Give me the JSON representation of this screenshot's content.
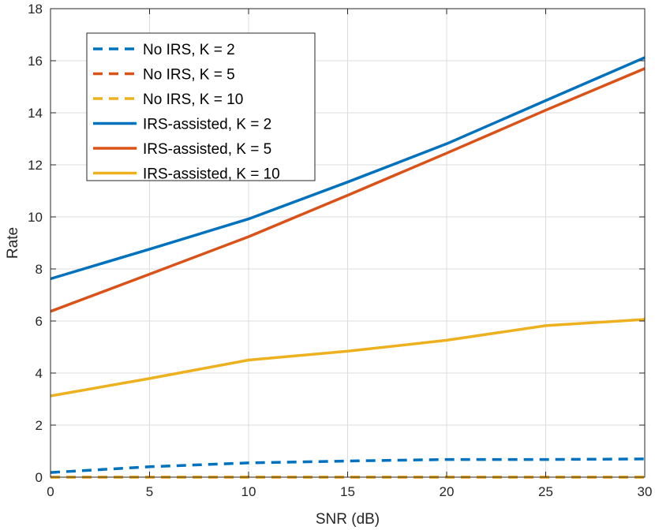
{
  "chart_data": {
    "type": "line",
    "title": "",
    "xlabel": "SNR (dB)",
    "ylabel": "Rate",
    "xlim": [
      0,
      30
    ],
    "ylim": [
      0,
      18
    ],
    "x_ticks": [
      0,
      5,
      10,
      15,
      20,
      25,
      30
    ],
    "y_ticks": [
      0,
      2,
      4,
      6,
      8,
      10,
      12,
      14,
      16,
      18
    ],
    "grid": true,
    "legend_position": "top-left",
    "x": [
      0,
      5,
      10,
      15,
      20,
      25,
      30
    ],
    "series": [
      {
        "name": "No IRS, K = 2",
        "style": "dashed",
        "color": "#0072BD",
        "values": [
          0.18,
          0.4,
          0.55,
          0.62,
          0.68,
          0.68,
          0.7
        ]
      },
      {
        "name": "No IRS, K = 5",
        "style": "dashed",
        "color": "#D95319",
        "values": [
          0.0,
          0.0,
          0.0,
          0.0,
          0.0,
          0.0,
          0.0
        ]
      },
      {
        "name": "No IRS, K = 10",
        "style": "dashed",
        "color": "#EDB120",
        "values": [
          0.0,
          0.0,
          0.0,
          0.0,
          0.0,
          0.0,
          0.0
        ]
      },
      {
        "name": "IRS-assisted, K = 2",
        "style": "solid",
        "color": "#0072BD",
        "values": [
          7.62,
          8.76,
          9.92,
          11.34,
          12.81,
          14.47,
          16.12
        ]
      },
      {
        "name": "IRS-assisted, K = 5",
        "style": "solid",
        "color": "#D95319",
        "values": [
          6.37,
          7.8,
          9.24,
          10.83,
          12.45,
          14.1,
          15.7
        ]
      },
      {
        "name": "IRS-assisted, K = 10",
        "style": "solid",
        "color": "#EDB120",
        "values": [
          3.12,
          3.79,
          4.5,
          4.84,
          5.26,
          5.82,
          6.06
        ]
      }
    ]
  }
}
